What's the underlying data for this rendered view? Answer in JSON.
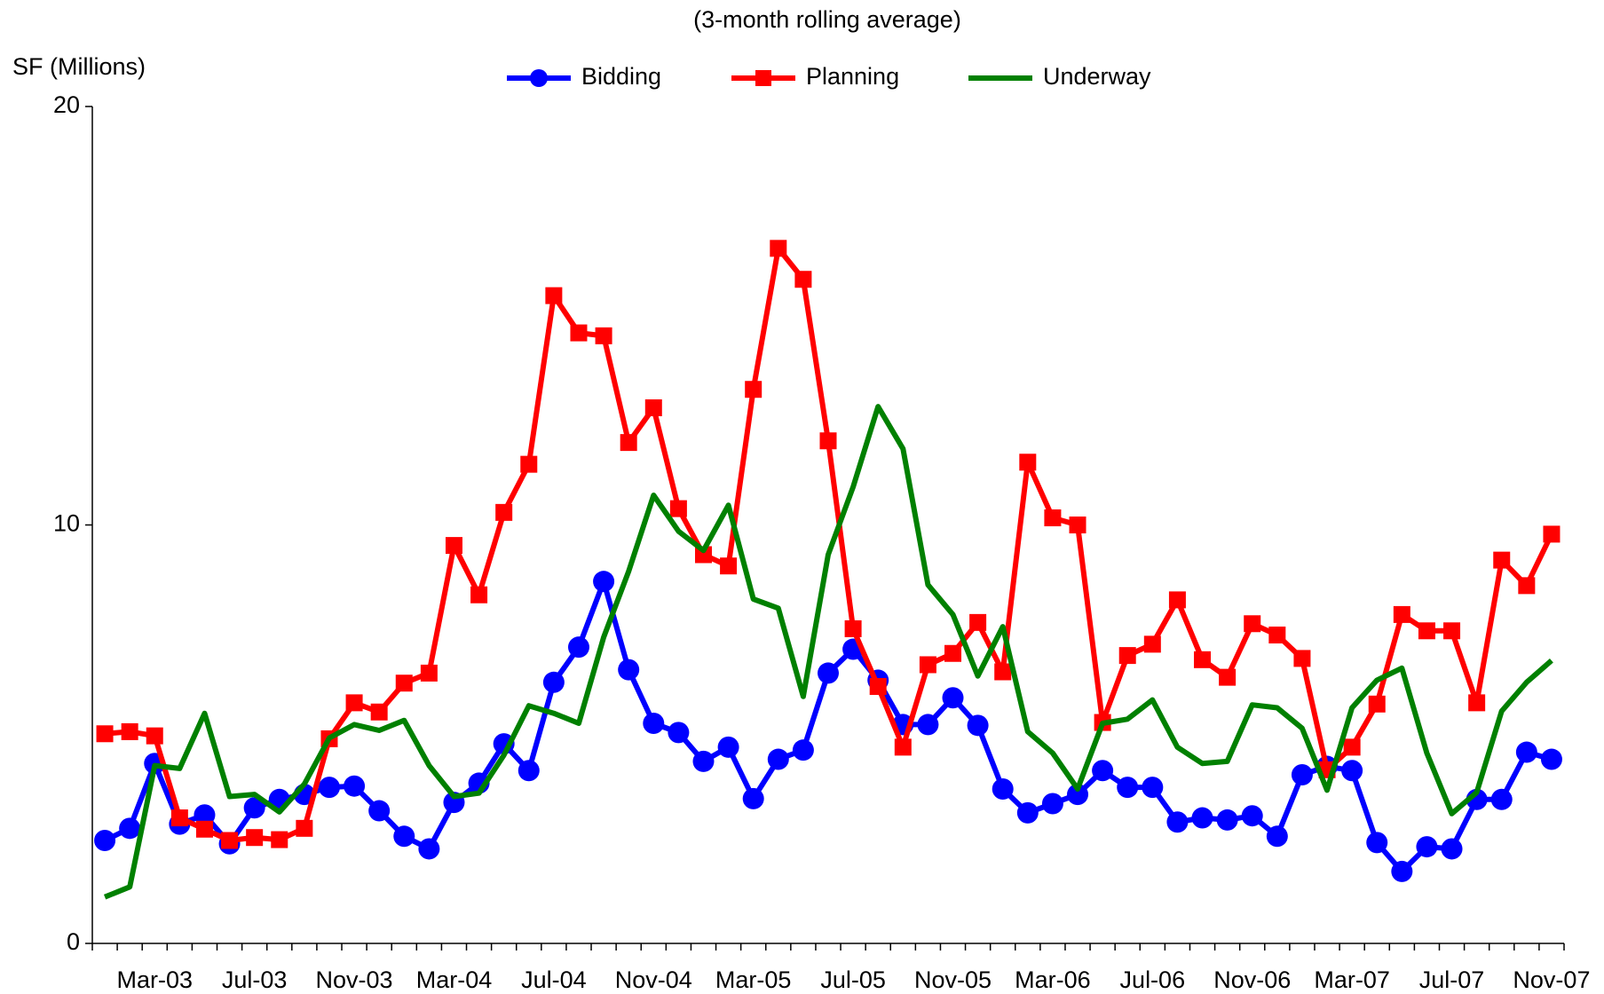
{
  "chart_data": {
    "type": "line",
    "title": "(3-month rolling average)",
    "y_label": "SF (Millions)",
    "categories": [
      null,
      null,
      "Mar-03",
      null,
      null,
      null,
      "Jul-03",
      null,
      null,
      null,
      "Nov-03",
      null,
      null,
      null,
      "Mar-04",
      null,
      null,
      null,
      "Jul-04",
      null,
      null,
      null,
      "Nov-04",
      null,
      null,
      null,
      "Mar-05",
      null,
      null,
      null,
      "Jul-05",
      null,
      null,
      null,
      "Nov-05",
      null,
      null,
      null,
      "Mar-06",
      null,
      null,
      null,
      "Jul-06",
      null,
      null,
      null,
      "Nov-06",
      null,
      null,
      null,
      "Mar-07",
      null,
      null,
      null,
      "Jul-07",
      null,
      null,
      null,
      "Nov-07"
    ],
    "series": [
      {
        "name": "Bidding",
        "color": "#0000ff",
        "marker": "circle",
        "values": [
          2.46,
          2.75,
          4.3,
          2.85,
          3.07,
          2.38,
          3.24,
          3.44,
          3.56,
          3.73,
          3.76,
          3.17,
          2.56,
          2.26,
          3.37,
          3.83,
          4.77,
          4.13,
          6.24,
          7.08,
          8.65,
          6.54,
          5.26,
          5.04,
          4.35,
          4.69,
          3.46,
          4.4,
          4.62,
          6.46,
          7.03,
          6.29,
          5.23,
          5.23,
          5.87,
          5.21,
          3.69,
          3.12,
          3.34,
          3.56,
          4.13,
          3.73,
          3.73,
          2.9,
          3.0,
          2.95,
          3.05,
          2.56,
          4.03,
          4.23,
          4.13,
          2.41,
          1.72,
          2.31,
          2.26,
          3.44,
          3.44,
          4.57,
          4.4
        ]
      },
      {
        "name": "Planning",
        "color": "#ff0000",
        "marker": "square",
        "values": [
          5.01,
          5.06,
          4.96,
          3.0,
          2.73,
          2.46,
          2.53,
          2.48,
          2.75,
          4.89,
          5.75,
          5.53,
          6.22,
          6.46,
          9.51,
          8.33,
          10.3,
          11.45,
          15.48,
          14.59,
          14.52,
          11.97,
          12.8,
          10.39,
          9.29,
          9.02,
          13.24,
          16.61,
          15.87,
          12.01,
          7.52,
          6.14,
          4.69,
          6.66,
          6.93,
          7.67,
          6.49,
          11.5,
          10.17,
          10.0,
          5.28,
          6.88,
          7.15,
          8.21,
          6.78,
          6.36,
          7.64,
          7.37,
          6.81,
          4.15,
          4.69,
          5.72,
          7.86,
          7.47,
          7.47,
          5.75,
          9.16,
          8.55,
          9.78
        ]
      },
      {
        "name": "Underway",
        "color": "#008000",
        "marker": "none",
        "values": [
          1.11,
          1.35,
          4.25,
          4.18,
          5.5,
          3.51,
          3.56,
          3.14,
          3.81,
          4.91,
          5.23,
          5.09,
          5.33,
          4.25,
          3.51,
          3.59,
          4.5,
          5.68,
          5.5,
          5.26,
          7.32,
          8.89,
          10.71,
          9.85,
          9.39,
          10.47,
          8.23,
          8.01,
          5.9,
          9.29,
          10.91,
          12.83,
          11.82,
          8.57,
          7.86,
          6.39,
          7.57,
          5.06,
          4.55,
          3.69,
          5.26,
          5.36,
          5.82,
          4.69,
          4.3,
          4.35,
          5.7,
          5.63,
          5.14,
          3.66,
          5.63,
          6.29,
          6.58,
          4.55,
          3.1,
          3.61,
          5.55,
          6.24,
          6.76
        ]
      }
    ],
    "ylim": [
      0,
      20
    ],
    "yticks": [
      0,
      10,
      20
    ],
    "grid": false,
    "legend": "top"
  }
}
